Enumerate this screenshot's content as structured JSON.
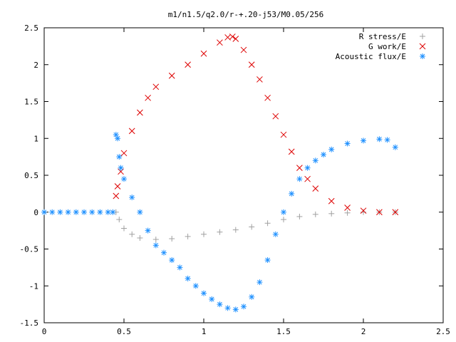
{
  "chart_data": {
    "type": "scatter",
    "title": "m1/n1.5/q2.0/r-+.20-j53/M0.05/256",
    "xlabel": "",
    "ylabel": "",
    "xlim": [
      0,
      2.5
    ],
    "ylim": [
      -1.5,
      2.5
    ],
    "xticks": [
      "0",
      "0.5",
      "1",
      "1.5",
      "2",
      "2.5"
    ],
    "yticks": [
      "2.5",
      "2",
      "1.5",
      "1",
      "0.5",
      "0",
      "-0.5",
      "-1",
      "-1.5"
    ],
    "grid": false,
    "legend": "top-right",
    "series": [
      {
        "name": "R stress/E",
        "marker": "plus",
        "color": "#a0a0a0",
        "x": [
          0.45,
          0.47,
          0.5,
          0.55,
          0.6,
          0.7,
          0.8,
          0.9,
          1.0,
          1.1,
          1.2,
          1.3,
          1.4,
          1.5,
          1.6,
          1.7,
          1.8,
          1.9,
          2.0,
          2.1,
          2.2
        ],
        "y": [
          0,
          -0.1,
          -0.22,
          -0.3,
          -0.35,
          -0.37,
          -0.36,
          -0.33,
          -0.3,
          -0.27,
          -0.24,
          -0.2,
          -0.15,
          -0.1,
          -0.06,
          -0.03,
          -0.02,
          -0.01,
          0,
          0,
          0
        ]
      },
      {
        "name": "G work/E",
        "marker": "cross",
        "color": "#dd0000",
        "x": [
          0.45,
          0.46,
          0.48,
          0.5,
          0.55,
          0.6,
          0.65,
          0.7,
          0.8,
          0.9,
          1.0,
          1.1,
          1.15,
          1.18,
          1.2,
          1.25,
          1.3,
          1.35,
          1.4,
          1.45,
          1.5,
          1.55,
          1.6,
          1.65,
          1.7,
          1.8,
          1.9,
          2.0,
          2.1,
          2.2
        ],
        "y": [
          0.22,
          0.35,
          0.55,
          0.8,
          1.1,
          1.35,
          1.55,
          1.7,
          1.85,
          2.0,
          2.15,
          2.3,
          2.37,
          2.38,
          2.35,
          2.2,
          2.0,
          1.8,
          1.55,
          1.3,
          1.05,
          0.82,
          0.6,
          0.45,
          0.32,
          0.15,
          0.06,
          0.02,
          0,
          0
        ]
      },
      {
        "name": "Acoustic flux/E",
        "marker": "star",
        "color": "#1e90ff",
        "x": [
          0,
          0.05,
          0.1,
          0.15,
          0.2,
          0.25,
          0.3,
          0.35,
          0.4,
          0.43,
          0.45,
          0.46,
          0.47,
          0.48,
          0.5,
          0.55,
          0.6,
          0.65,
          0.7,
          0.75,
          0.8,
          0.85,
          0.9,
          0.95,
          1.0,
          1.05,
          1.1,
          1.15,
          1.2,
          1.25,
          1.3,
          1.35,
          1.4,
          1.45,
          1.5,
          1.55,
          1.6,
          1.65,
          1.7,
          1.75,
          1.8,
          1.9,
          2.0,
          2.1,
          2.15,
          2.2
        ],
        "y": [
          0,
          0,
          0,
          0,
          0,
          0,
          0,
          0,
          0,
          0,
          1.05,
          1.0,
          0.75,
          0.6,
          0.45,
          0.2,
          0,
          -0.25,
          -0.45,
          -0.55,
          -0.65,
          -0.75,
          -0.9,
          -1.0,
          -1.1,
          -1.18,
          -1.25,
          -1.3,
          -1.32,
          -1.28,
          -1.15,
          -0.95,
          -0.65,
          -0.3,
          0,
          0.25,
          0.45,
          0.6,
          0.7,
          0.78,
          0.85,
          0.93,
          0.97,
          0.99,
          0.98,
          0.88
        ]
      }
    ]
  }
}
